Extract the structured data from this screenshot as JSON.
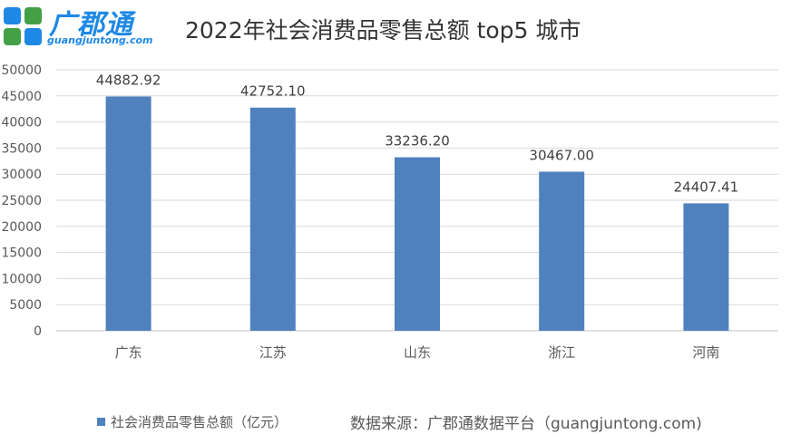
{
  "brand": {
    "name": "广郡通",
    "url": "guangjuntong.com",
    "color": "#1e88e5"
  },
  "source_note": "数据来源：广郡通数据平台（guangjuntong.com)",
  "chart_data": {
    "type": "bar",
    "title": "2022年社会消费品零售总额 top5 城市",
    "categories": [
      "广东",
      "江苏",
      "山东",
      "浙江",
      "河南"
    ],
    "series": [
      {
        "name": "社会消费品零售总额（亿元）",
        "values": [
          44882.92,
          42752.1,
          33236.2,
          30467.0,
          24407.41
        ],
        "labels": [
          "44882.92",
          "42752.10",
          "33236.20",
          "30467.00",
          "24407.41"
        ],
        "color": "#4f81bd"
      }
    ],
    "yticks": [
      "0",
      "5000",
      "10000",
      "15000",
      "20000",
      "25000",
      "30000",
      "35000",
      "40000",
      "45000",
      "50000"
    ],
    "ylim": [
      0,
      50000
    ],
    "grid": true,
    "legend_position": "bottom-left"
  }
}
